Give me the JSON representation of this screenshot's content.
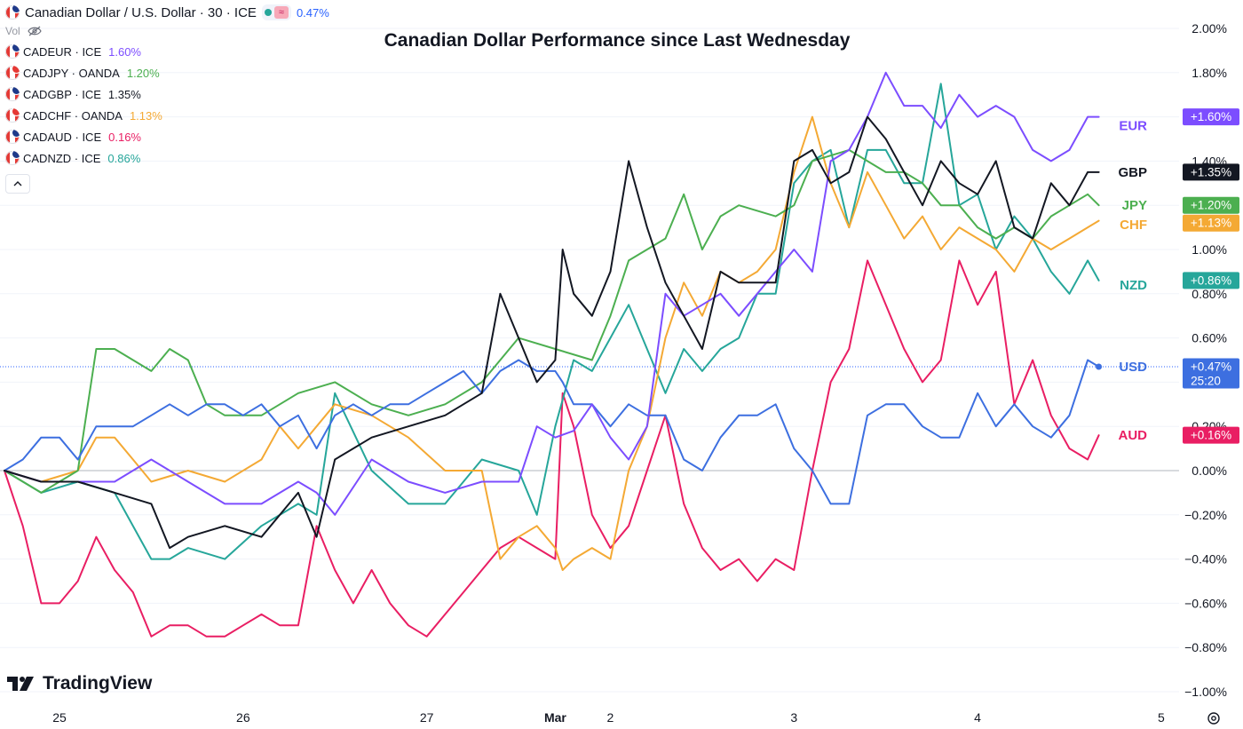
{
  "legend": {
    "title": "Canadian Dollar / U.S. Dollar · 30 · ICE",
    "change": "0.47%",
    "vol_label": "Vol",
    "collapse_icon": "chevron-up-icon",
    "symbols": [
      {
        "name": "CADEUR · ICE",
        "value": "1.60%",
        "color": "#7c4dff",
        "flag_color": "#1e3a8a"
      },
      {
        "name": "CADJPY · OANDA",
        "value": "1.20%",
        "color": "#4caf50",
        "flag_color": "#e53935"
      },
      {
        "name": "CADGBP · ICE",
        "value": "1.35%",
        "color": "#131722",
        "flag_color": "#1e3a8a"
      },
      {
        "name": "CADCHF · OANDA",
        "value": "1.13%",
        "color": "#f4a934",
        "flag_color": "#e53935"
      },
      {
        "name": "CADAUD · ICE",
        "value": "0.16%",
        "color": "#e91e63",
        "flag_color": "#1e3a8a"
      },
      {
        "name": "CADNZD · ICE",
        "value": "0.86%",
        "color": "#26a69a",
        "flag_color": "#1e3a8a"
      }
    ]
  },
  "branding": {
    "logo_text": "TradingView"
  },
  "chart_data": {
    "type": "line",
    "title": "Canadian Dollar Performance since Last Wednesday",
    "xlabel": "",
    "ylabel": "",
    "ylim": [
      -1.0,
      2.0
    ],
    "x_range": [
      0,
      300
    ],
    "x_ticks": [
      {
        "x": 15,
        "label": "25"
      },
      {
        "x": 65,
        "label": "26"
      },
      {
        "x": 115,
        "label": "27"
      },
      {
        "x": 150,
        "label": "Mar"
      },
      {
        "x": 165,
        "label": "2"
      },
      {
        "x": 215,
        "label": "3"
      },
      {
        "x": 265,
        "label": "4"
      },
      {
        "x": 315,
        "label": "5"
      }
    ],
    "y_ticks": [
      {
        "value": 2.0,
        "label": "2.00%"
      },
      {
        "value": 1.8,
        "label": "1.80%"
      },
      {
        "value": 1.4,
        "label": "1.40%"
      },
      {
        "value": 1.0,
        "label": "1.00%"
      },
      {
        "value": 0.8,
        "label": "0.80%"
      },
      {
        "value": 0.6,
        "label": "0.60%"
      },
      {
        "value": 0.2,
        "label": "0.20%"
      },
      {
        "value": 0.0,
        "label": "0.00%"
      },
      {
        "value": -0.2,
        "label": "−0.20%"
      },
      {
        "value": -0.4,
        "label": "−0.40%"
      },
      {
        "value": -0.6,
        "label": "−0.60%"
      },
      {
        "value": -0.8,
        "label": "−0.80%"
      },
      {
        "value": -1.0,
        "label": "−1.00%"
      }
    ],
    "current_line": {
      "value": 0.47,
      "color": "#2962ff"
    },
    "series": [
      {
        "name": "EUR",
        "color": "#7c4dff",
        "badge": "+1.60%",
        "last": 1.6,
        "x": [
          0,
          10,
          20,
          30,
          40,
          50,
          60,
          70,
          80,
          85,
          90,
          100,
          110,
          120,
          130,
          140,
          145,
          150,
          155,
          160,
          165,
          170,
          175,
          180,
          185,
          190,
          195,
          200,
          210,
          215,
          220,
          225,
          230,
          235,
          240,
          245,
          250,
          255,
          260,
          265,
          270,
          275,
          280,
          285,
          290,
          295,
          298
        ],
        "values": [
          0.0,
          -0.05,
          -0.05,
          -0.05,
          0.05,
          -0.05,
          -0.15,
          -0.15,
          -0.05,
          -0.1,
          -0.2,
          0.05,
          -0.05,
          -0.1,
          -0.05,
          -0.05,
          0.2,
          0.15,
          0.18,
          0.3,
          0.15,
          0.05,
          0.2,
          0.8,
          0.7,
          0.75,
          0.8,
          0.7,
          0.9,
          1.0,
          0.9,
          1.4,
          1.45,
          1.6,
          1.8,
          1.65,
          1.65,
          1.55,
          1.7,
          1.6,
          1.65,
          1.6,
          1.45,
          1.4,
          1.45,
          1.6,
          1.6
        ]
      },
      {
        "name": "GBP",
        "color": "#131722",
        "badge": "+1.35%",
        "last": 1.35,
        "x": [
          0,
          10,
          20,
          30,
          40,
          45,
          50,
          60,
          70,
          80,
          85,
          90,
          100,
          110,
          120,
          130,
          135,
          140,
          145,
          150,
          152,
          155,
          160,
          165,
          170,
          175,
          180,
          185,
          190,
          195,
          200,
          210,
          215,
          220,
          225,
          230,
          235,
          240,
          245,
          250,
          255,
          260,
          265,
          270,
          275,
          280,
          285,
          290,
          295,
          298
        ],
        "values": [
          0.0,
          -0.05,
          -0.05,
          -0.1,
          -0.15,
          -0.35,
          -0.3,
          -0.25,
          -0.3,
          -0.1,
          -0.3,
          0.05,
          0.15,
          0.2,
          0.25,
          0.35,
          0.8,
          0.6,
          0.4,
          0.5,
          1.0,
          0.8,
          0.7,
          0.9,
          1.4,
          1.1,
          0.85,
          0.7,
          0.55,
          0.9,
          0.85,
          0.85,
          1.4,
          1.45,
          1.3,
          1.35,
          1.6,
          1.5,
          1.35,
          1.2,
          1.4,
          1.3,
          1.25,
          1.4,
          1.1,
          1.05,
          1.3,
          1.2,
          1.35,
          1.35
        ]
      },
      {
        "name": "JPY",
        "color": "#4caf50",
        "badge": "+1.20%",
        "last": 1.2,
        "x": [
          0,
          10,
          20,
          25,
          30,
          40,
          45,
          50,
          55,
          60,
          70,
          80,
          90,
          100,
          110,
          120,
          130,
          140,
          150,
          160,
          165,
          170,
          180,
          185,
          190,
          195,
          200,
          210,
          215,
          220,
          230,
          240,
          245,
          250,
          255,
          260,
          265,
          270,
          275,
          280,
          285,
          290,
          295,
          298
        ],
        "values": [
          0.0,
          -0.1,
          0.0,
          0.55,
          0.55,
          0.45,
          0.55,
          0.5,
          0.3,
          0.25,
          0.25,
          0.35,
          0.4,
          0.3,
          0.25,
          0.3,
          0.4,
          0.6,
          0.55,
          0.5,
          0.7,
          0.95,
          1.05,
          1.25,
          1.0,
          1.15,
          1.2,
          1.15,
          1.2,
          1.4,
          1.45,
          1.35,
          1.35,
          1.3,
          1.2,
          1.2,
          1.1,
          1.05,
          1.1,
          1.05,
          1.15,
          1.2,
          1.25,
          1.2
        ]
      },
      {
        "name": "CHF",
        "color": "#f4a934",
        "badge": "+1.13%",
        "last": 1.13,
        "x": [
          0,
          10,
          20,
          25,
          30,
          35,
          40,
          50,
          60,
          70,
          75,
          80,
          90,
          100,
          110,
          120,
          130,
          135,
          140,
          145,
          150,
          152,
          155,
          160,
          165,
          170,
          175,
          180,
          185,
          190,
          195,
          200,
          205,
          210,
          215,
          220,
          225,
          230,
          235,
          240,
          245,
          250,
          255,
          260,
          265,
          270,
          275,
          280,
          285,
          290,
          295,
          298
        ],
        "values": [
          0.0,
          -0.05,
          0.0,
          0.15,
          0.15,
          0.05,
          -0.05,
          0.0,
          -0.05,
          0.05,
          0.2,
          0.1,
          0.3,
          0.25,
          0.15,
          0.0,
          0.0,
          -0.4,
          -0.3,
          -0.25,
          -0.35,
          -0.45,
          -0.4,
          -0.35,
          -0.4,
          0.0,
          0.2,
          0.6,
          0.85,
          0.7,
          0.9,
          0.85,
          0.9,
          1.0,
          1.35,
          1.6,
          1.3,
          1.1,
          1.35,
          1.2,
          1.05,
          1.15,
          1.0,
          1.1,
          1.05,
          1.0,
          0.9,
          1.05,
          1.0,
          1.05,
          1.1,
          1.13
        ]
      },
      {
        "name": "AUD",
        "color": "#e91e63",
        "badge": "+0.16%",
        "last": 0.16,
        "x": [
          0,
          5,
          10,
          15,
          20,
          25,
          30,
          35,
          40,
          45,
          50,
          55,
          60,
          65,
          70,
          75,
          80,
          85,
          90,
          95,
          100,
          105,
          110,
          115,
          120,
          125,
          130,
          135,
          140,
          145,
          150,
          152,
          155,
          160,
          165,
          170,
          175,
          180,
          185,
          190,
          195,
          200,
          205,
          210,
          215,
          220,
          225,
          230,
          235,
          240,
          245,
          250,
          255,
          260,
          265,
          270,
          275,
          280,
          285,
          290,
          295,
          298
        ],
        "values": [
          0.0,
          -0.25,
          -0.6,
          -0.6,
          -0.5,
          -0.3,
          -0.45,
          -0.55,
          -0.75,
          -0.7,
          -0.7,
          -0.75,
          -0.75,
          -0.7,
          -0.65,
          -0.7,
          -0.7,
          -0.25,
          -0.45,
          -0.6,
          -0.45,
          -0.6,
          -0.7,
          -0.75,
          -0.65,
          -0.55,
          -0.45,
          -0.35,
          -0.3,
          -0.35,
          -0.4,
          0.35,
          0.2,
          -0.2,
          -0.35,
          -0.25,
          0.0,
          0.25,
          -0.15,
          -0.35,
          -0.45,
          -0.4,
          -0.5,
          -0.4,
          -0.45,
          0.0,
          0.4,
          0.55,
          0.95,
          0.75,
          0.55,
          0.4,
          0.5,
          0.95,
          0.75,
          0.9,
          0.3,
          0.5,
          0.25,
          0.1,
          0.05,
          0.16
        ]
      },
      {
        "name": "NZD",
        "color": "#26a69a",
        "badge": "+0.86%",
        "last": 0.86,
        "x": [
          0,
          10,
          20,
          30,
          40,
          45,
          50,
          60,
          70,
          80,
          85,
          90,
          100,
          110,
          120,
          130,
          140,
          145,
          150,
          155,
          160,
          165,
          170,
          180,
          185,
          190,
          195,
          200,
          205,
          210,
          215,
          220,
          225,
          230,
          235,
          240,
          245,
          250,
          255,
          260,
          265,
          270,
          275,
          280,
          285,
          290,
          295,
          298
        ],
        "values": [
          0.0,
          -0.1,
          -0.05,
          -0.1,
          -0.4,
          -0.4,
          -0.35,
          -0.4,
          -0.25,
          -0.15,
          -0.2,
          0.35,
          0.0,
          -0.15,
          -0.15,
          0.05,
          0.0,
          -0.2,
          0.2,
          0.5,
          0.45,
          0.6,
          0.75,
          0.35,
          0.55,
          0.45,
          0.55,
          0.6,
          0.8,
          0.8,
          1.3,
          1.4,
          1.45,
          1.1,
          1.45,
          1.45,
          1.3,
          1.3,
          1.75,
          1.2,
          1.25,
          1.0,
          1.15,
          1.05,
          0.9,
          0.8,
          0.95,
          0.86
        ]
      },
      {
        "name": "USD",
        "color": "#3d6fe0",
        "badge": "+0.47%",
        "badge_sub": "25:20",
        "last": 0.47,
        "x": [
          0,
          5,
          10,
          15,
          20,
          25,
          30,
          35,
          40,
          45,
          50,
          55,
          60,
          65,
          70,
          75,
          80,
          85,
          90,
          95,
          100,
          105,
          110,
          115,
          120,
          125,
          130,
          135,
          140,
          145,
          150,
          152,
          155,
          160,
          165,
          170,
          175,
          180,
          185,
          190,
          195,
          200,
          205,
          210,
          215,
          220,
          225,
          230,
          235,
          240,
          245,
          250,
          255,
          260,
          265,
          270,
          275,
          280,
          285,
          290,
          295,
          298
        ],
        "values": [
          0.0,
          0.05,
          0.15,
          0.15,
          0.05,
          0.2,
          0.2,
          0.2,
          0.25,
          0.3,
          0.25,
          0.3,
          0.3,
          0.25,
          0.3,
          0.2,
          0.25,
          0.1,
          0.25,
          0.3,
          0.25,
          0.3,
          0.3,
          0.35,
          0.4,
          0.45,
          0.35,
          0.45,
          0.5,
          0.45,
          0.45,
          0.4,
          0.3,
          0.3,
          0.2,
          0.3,
          0.25,
          0.25,
          0.05,
          0.0,
          0.15,
          0.25,
          0.25,
          0.3,
          0.1,
          0.0,
          -0.15,
          -0.15,
          0.25,
          0.3,
          0.3,
          0.2,
          0.15,
          0.15,
          0.35,
          0.2,
          0.3,
          0.2,
          0.15,
          0.25,
          0.5,
          0.47
        ]
      }
    ]
  }
}
